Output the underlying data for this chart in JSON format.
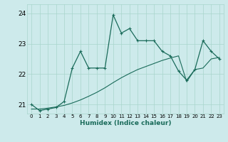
{
  "xlabel": "Humidex (Indice chaleur)",
  "ylabel": "",
  "bg_color": "#cdeaeb",
  "line_color": "#1a6b5a",
  "grid_color": "#a8d5cc",
  "xlim": [
    -0.5,
    23.5
  ],
  "ylim": [
    20.7,
    24.3
  ],
  "yticks": [
    21,
    22,
    23,
    24
  ],
  "xticks": [
    0,
    1,
    2,
    3,
    4,
    5,
    6,
    7,
    8,
    9,
    10,
    11,
    12,
    13,
    14,
    15,
    16,
    17,
    18,
    19,
    20,
    21,
    22,
    23
  ],
  "series1_x": [
    0,
    1,
    2,
    3,
    4,
    5,
    6,
    7,
    8,
    9,
    10,
    11,
    12,
    13,
    14,
    15,
    16,
    17,
    18,
    19,
    20,
    21,
    22,
    23
  ],
  "series1_y": [
    21.0,
    20.8,
    20.85,
    20.9,
    21.1,
    22.2,
    22.75,
    22.2,
    22.2,
    22.2,
    23.95,
    23.35,
    23.5,
    23.1,
    23.1,
    23.1,
    22.75,
    22.6,
    22.1,
    21.8,
    22.15,
    23.1,
    22.75,
    22.5
  ],
  "series2_x": [
    0,
    1,
    2,
    3,
    4,
    5,
    6,
    7,
    8,
    9,
    10,
    11,
    12,
    13,
    14,
    15,
    16,
    17,
    18,
    19,
    20,
    21,
    22,
    23
  ],
  "series2_y": [
    20.85,
    20.85,
    20.88,
    20.92,
    20.97,
    21.05,
    21.15,
    21.27,
    21.4,
    21.55,
    21.72,
    21.88,
    22.02,
    22.15,
    22.25,
    22.35,
    22.45,
    22.53,
    22.6,
    21.75,
    22.15,
    22.2,
    22.5,
    22.55
  ]
}
